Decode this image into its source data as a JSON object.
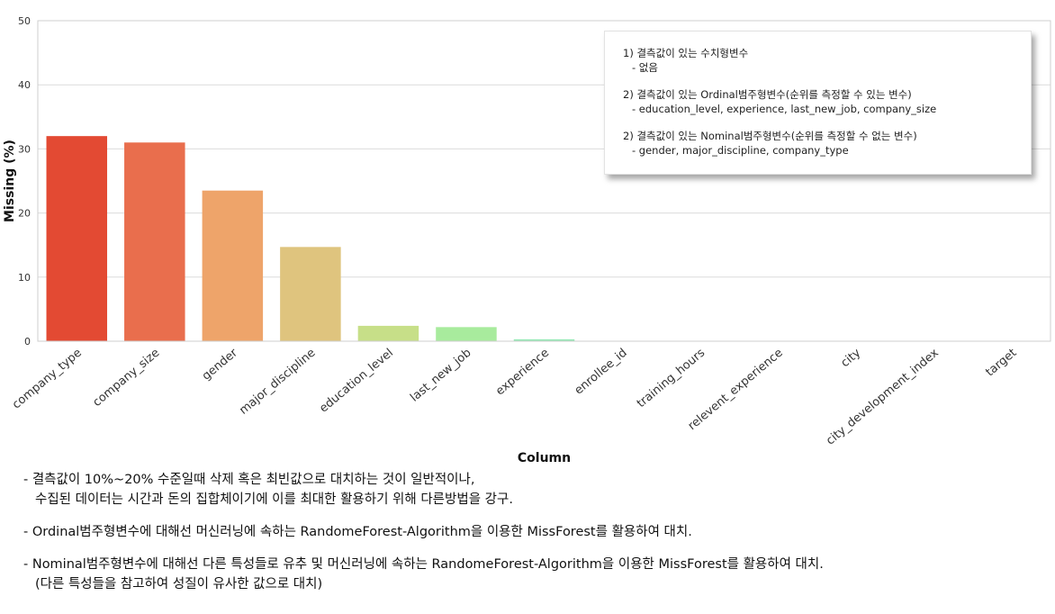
{
  "chart_data": {
    "type": "bar",
    "categories": [
      "company_type",
      "company_size",
      "gender",
      "major_discipline",
      "education_level",
      "last_new_job",
      "experience",
      "enrollee_id",
      "training_hours",
      "relevent_experience",
      "city",
      "city_development_index",
      "target"
    ],
    "values": [
      32.0,
      31.0,
      23.5,
      14.7,
      2.4,
      2.2,
      0.3,
      0,
      0,
      0,
      0,
      0,
      0
    ],
    "colors": [
      "#e34a33",
      "#e96e4d",
      "#eea46a",
      "#dfc47e",
      "#c7df88",
      "#a8eb9d",
      "#95e8b5",
      "#8fe3c2",
      "#8fe3c2",
      "#8fe3c2",
      "#8fe3c2",
      "#8fe3c2",
      "#8fe3c2"
    ],
    "xlabel": "Column",
    "ylabel": "Missing (%)",
    "ylim": [
      0,
      50
    ],
    "yticks": [
      "0",
      "10",
      "20",
      "30",
      "40",
      "50"
    ],
    "grid": true,
    "legend": "none"
  },
  "note_box": {
    "groups": [
      {
        "heading": "1) 결측값이 있는 수치형변수",
        "item": "- 없음"
      },
      {
        "heading": "2) 결측값이 있는 Ordinal범주형변수(순위를 측정할 수 있는 변수)",
        "item": "- education_level,    experience,    last_new_job,    company_size"
      },
      {
        "heading": "2) 결측값이 있는 Nominal범주형변수(순위를 측정할 수 없는 변수)",
        "item": "- gender,    major_discipline,    company_type"
      }
    ]
  },
  "bottom_notes": {
    "p1_line1": "- 결측값이 10%~20% 수준일때 삭제 혹은 최빈값으로 대치하는 것이 일반적이나,",
    "p1_line2": "수집된 데이터는 시간과 돈의 집합체이기에 이를 최대한 활용하기 위해 다른방법을 강구.",
    "p2": "- Ordinal범주형변수에 대해선 머신러닝에 속하는 RandomeForest-Algorithm을 이용한 MissForest를 활용하여 대치.",
    "p3_line1": "- Nominal범주형변수에 대해선 다른 특성들로 유추 및 머신러닝에 속하는 RandomeForest-Algorithm을 이용한 MissForest를 활용하여 대치.",
    "p3_line2": "(다른 특성들을 참고하여 성질이 유사한 값으로 대치)"
  }
}
